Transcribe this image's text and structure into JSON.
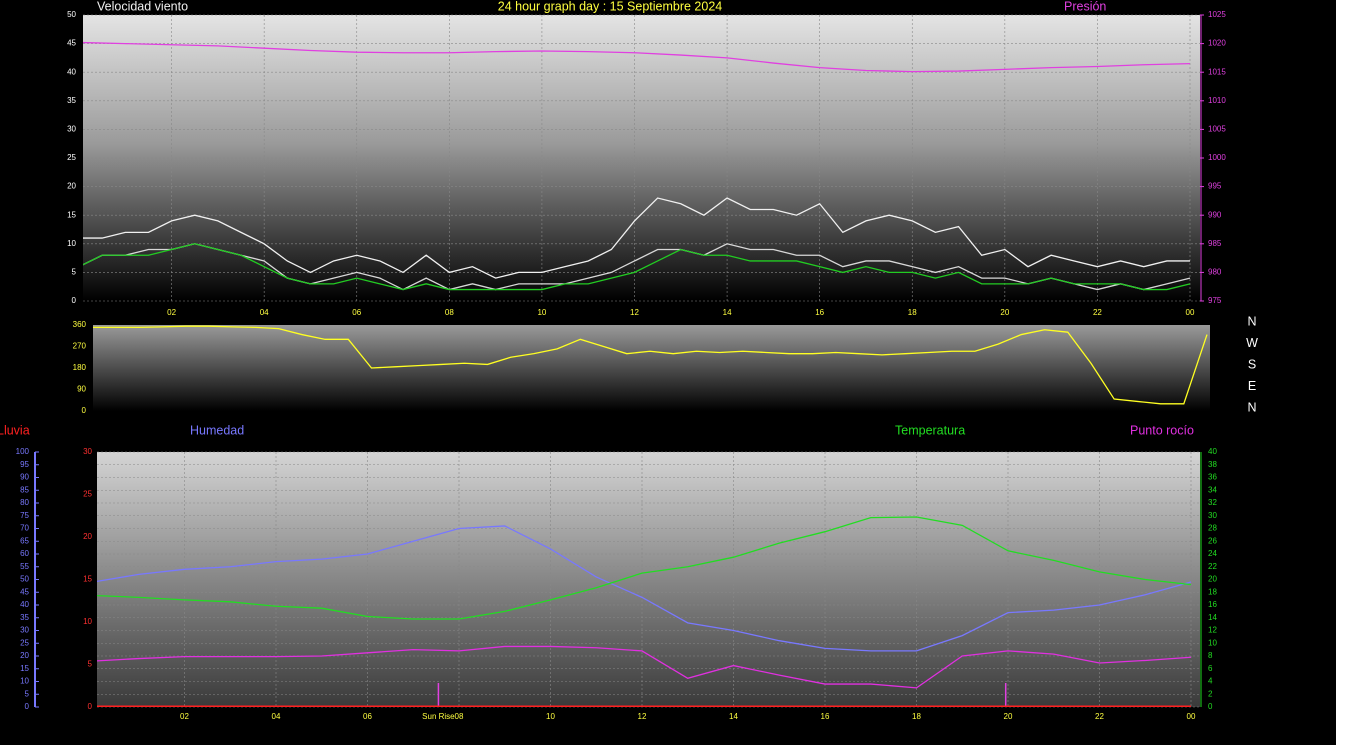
{
  "title": "24 hour graph day : 15 Septiembre 2024",
  "chart_data": [
    {
      "type": "line",
      "xlim": [
        0,
        24
      ],
      "xticks": [
        {
          "value": 2,
          "label": "02"
        },
        {
          "value": 4,
          "label": "04"
        },
        {
          "value": 6,
          "label": "06"
        },
        {
          "value": 8,
          "label": "08"
        },
        10,
        12,
        14,
        16,
        18,
        20,
        22,
        {
          "value": 24,
          "label": "00"
        }
      ],
      "ylim": [
        0,
        50
      ],
      "yticks": [
        0,
        5,
        10,
        15,
        20,
        25,
        30,
        35,
        40,
        45,
        50
      ],
      "y2lim": [
        975,
        1025
      ],
      "y2ticks": [
        975,
        980,
        985,
        990,
        995,
        1000,
        1005,
        1010,
        1015,
        1020,
        1025
      ],
      "grid": "ylim",
      "x": [
        0,
        0.5,
        1,
        1.5,
        2,
        2.5,
        3,
        3.5,
        4,
        4.5,
        5,
        5.5,
        6,
        6.5,
        7,
        7.5,
        8,
        8.5,
        9,
        9.5,
        10,
        10.5,
        11,
        11.5,
        12,
        12.5,
        13,
        13.5,
        14,
        14.5,
        15,
        15.5,
        16,
        16.5,
        17,
        17.5,
        18,
        18.5,
        19,
        19.5,
        20,
        20.5,
        21,
        21.5,
        22,
        22.5,
        23,
        23.5,
        24
      ],
      "series": [
        {
          "name": "Velocidad viento",
          "color": "#f0f0f0",
          "values": [
            11,
            11,
            12,
            12,
            14,
            15,
            14,
            12,
            10,
            7,
            5,
            7,
            8,
            7,
            5,
            8,
            5,
            6,
            4,
            5,
            5,
            6,
            7,
            9,
            14,
            18,
            17,
            15,
            18,
            16,
            16,
            15,
            17,
            12,
            14,
            15,
            14,
            12,
            13,
            8,
            9,
            6,
            8,
            7,
            6,
            7,
            6,
            7,
            7
          ]
        },
        {
          "color": "#d8d8d8",
          "values": [
            6,
            8,
            8,
            9,
            9,
            10,
            9,
            8,
            7,
            4,
            3,
            4,
            5,
            4,
            2,
            4,
            2,
            3,
            2,
            3,
            3,
            3,
            4,
            5,
            7,
            9,
            9,
            8,
            10,
            9,
            9,
            8,
            8,
            6,
            7,
            7,
            6,
            5,
            6,
            4,
            4,
            3,
            4,
            3,
            2,
            3,
            2,
            3,
            4
          ]
        },
        {
          "color": "#22cc22",
          "values": [
            6,
            8,
            8,
            8,
            9,
            10,
            9,
            8,
            6,
            4,
            3,
            3,
            4,
            3,
            2,
            3,
            2,
            2,
            2,
            2,
            2,
            3,
            3,
            4,
            5,
            7,
            9,
            8,
            8,
            7,
            7,
            7,
            6,
            5,
            6,
            5,
            5,
            4,
            5,
            3,
            3,
            3,
            4,
            3,
            3,
            3,
            2,
            2,
            3
          ]
        },
        {
          "name": "Presión",
          "color": "#e040e0",
          "axis": "y2",
          "x": [
            0,
            1,
            2,
            3,
            4,
            5,
            6,
            7,
            8,
            9,
            10,
            11,
            12,
            13,
            14,
            15,
            16,
            17,
            18,
            19,
            20,
            21,
            22,
            23,
            24
          ],
          "values": [
            1020.2,
            1020,
            1019.8,
            1019.6,
            1019.2,
            1018.8,
            1018.5,
            1018.4,
            1018.4,
            1018.6,
            1018.7,
            1018.6,
            1018.4,
            1018,
            1017.5,
            1016.6,
            1015.8,
            1015.3,
            1015.1,
            1015.2,
            1015.5,
            1015.8,
            1016,
            1016.3,
            1016.5
          ]
        }
      ]
    },
    {
      "type": "line",
      "xlim": [
        0,
        24
      ],
      "ylim": [
        0,
        360
      ],
      "yticks": [
        0,
        90,
        180,
        270,
        360
      ],
      "compass": [
        "N",
        "W",
        "S",
        "E",
        "N"
      ],
      "x": [
        0,
        0.5,
        1,
        1.5,
        2,
        2.5,
        3,
        3.5,
        4,
        4.5,
        5,
        5.5,
        6,
        6.5,
        7,
        7.5,
        8,
        8.5,
        9,
        9.5,
        10,
        10.5,
        11,
        11.5,
        12,
        12.5,
        13,
        13.5,
        14,
        14.5,
        15,
        15.5,
        16,
        16.5,
        17,
        17.5,
        18,
        18.5,
        19,
        19.5,
        20,
        20.5,
        21,
        21.5,
        22,
        22.5,
        23,
        23.5,
        24
      ],
      "series": [
        {
          "color": "#ffff22",
          "values": [
            350,
            350,
            350,
            352,
            355,
            355,
            352,
            350,
            345,
            320,
            300,
            300,
            180,
            185,
            190,
            195,
            200,
            195,
            225,
            240,
            260,
            300,
            270,
            240,
            250,
            240,
            250,
            245,
            250,
            245,
            240,
            240,
            245,
            240,
            235,
            240,
            245,
            250,
            250,
            280,
            320,
            340,
            330,
            200,
            50,
            40,
            30,
            30,
            320
          ]
        }
      ]
    },
    {
      "type": "line",
      "xlim": [
        0,
        24
      ],
      "xticks": [
        {
          "value": 2,
          "label": "02"
        },
        {
          "value": 4,
          "label": "04"
        },
        {
          "value": 6,
          "label": "06"
        },
        {
          "value": 8,
          "label": "08"
        },
        10,
        12,
        14,
        16,
        18,
        20,
        22,
        {
          "value": 24,
          "label": "00"
        }
      ],
      "ylim": [
        0,
        30
      ],
      "yticks": [
        0,
        5,
        10,
        15,
        20,
        25,
        30
      ],
      "y2lim": [
        0,
        40
      ],
      "y2ticks": [
        0,
        2,
        4,
        6,
        8,
        10,
        12,
        14,
        16,
        18,
        20,
        22,
        24,
        26,
        28,
        30,
        32,
        34,
        36,
        38,
        40
      ],
      "y3lim": [
        0,
        100
      ],
      "y3ticks": [
        0,
        5,
        10,
        15,
        20,
        25,
        30,
        35,
        40,
        45,
        50,
        55,
        60,
        65,
        70,
        75,
        80,
        85,
        90,
        95,
        100
      ],
      "grid": "y2lim",
      "markers": [
        {
          "x": 7.55,
          "label": "Sun Rise"
        },
        {
          "x": 19.95
        }
      ],
      "x": [
        0,
        1,
        2,
        3,
        4,
        5,
        6,
        7,
        8,
        9,
        10,
        11,
        12,
        13,
        14,
        15,
        16,
        17,
        18,
        19,
        20,
        21,
        22,
        23,
        24
      ],
      "series": [
        {
          "name": "Lluvia",
          "color": "#ff2020",
          "values": [
            0,
            0,
            0,
            0,
            0,
            0,
            0,
            0,
            0,
            0,
            0,
            0,
            0,
            0,
            0,
            0,
            0,
            0,
            0,
            0,
            0,
            0,
            0,
            0,
            0
          ]
        },
        {
          "name": "Humedad",
          "color": "#7878ff",
          "axis": "y3",
          "values": [
            49,
            52,
            54,
            55,
            57,
            58,
            60,
            65,
            70,
            71,
            62,
            51,
            43,
            33,
            30,
            26,
            23,
            22,
            22,
            28,
            37,
            38,
            40,
            44,
            49
          ]
        },
        {
          "name": "Temperatura",
          "color": "#22dd22",
          "axis": "y2",
          "values": [
            17.5,
            17.2,
            16.8,
            16.5,
            15.8,
            15.5,
            14.2,
            13.8,
            13.8,
            15,
            16.8,
            18.7,
            21,
            22,
            23.5,
            25.7,
            27.5,
            29.7,
            29.8,
            28.5,
            24.5,
            23,
            21.2,
            20,
            19.2
          ]
        },
        {
          "name": "Punto rocío",
          "color": "#e030e0",
          "axis": "y2",
          "values": [
            7.2,
            7.6,
            7.9,
            7.9,
            7.9,
            8,
            8.5,
            9,
            8.8,
            9.5,
            9.5,
            9.3,
            8.8,
            4.5,
            6.5,
            5,
            3.6,
            3.6,
            3,
            8,
            8.8,
            8.3,
            6.9,
            7.3,
            7.8
          ]
        }
      ]
    }
  ]
}
